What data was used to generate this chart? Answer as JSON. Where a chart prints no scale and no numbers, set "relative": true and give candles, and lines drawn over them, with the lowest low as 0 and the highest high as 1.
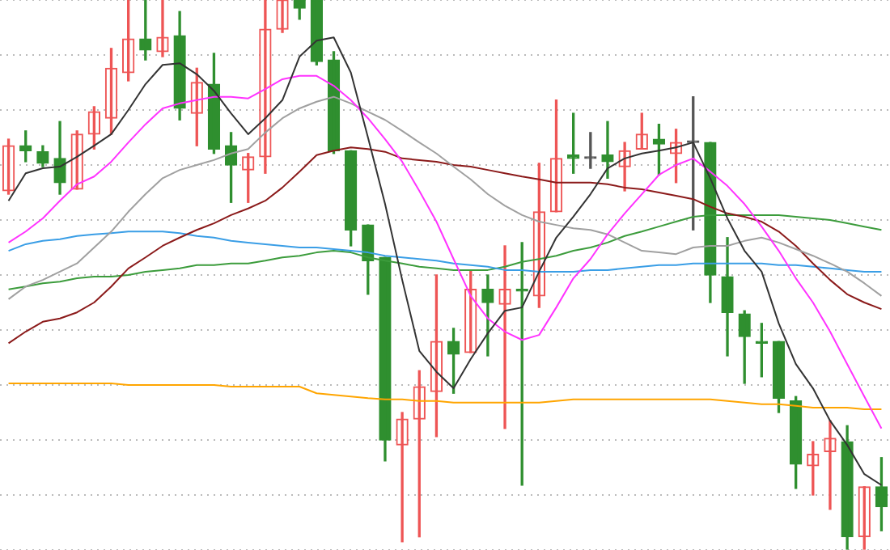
{
  "chart_data": {
    "type": "candlestick",
    "relative": true,
    "grid": "y",
    "legend": false,
    "tick_labels": false,
    "marker": "none",
    "categories": [
      null,
      null,
      null,
      null,
      null,
      null,
      null,
      null,
      null,
      null,
      null,
      null,
      null,
      null,
      null,
      null,
      null,
      null,
      null,
      null,
      null,
      null,
      null,
      null,
      null,
      null,
      null,
      null,
      null,
      null,
      null,
      null,
      null,
      null,
      null,
      null,
      null,
      null,
      null,
      null,
      null,
      null,
      null,
      null,
      null,
      null,
      null,
      null,
      null,
      null,
      null,
      null
    ],
    "ohlc": [
      [
        0.653,
        0.747,
        0.647,
        0.735
      ],
      [
        0.735,
        0.762,
        0.706,
        0.726
      ],
      [
        0.724,
        0.735,
        0.697,
        0.703
      ],
      [
        0.712,
        0.779,
        0.647,
        0.668
      ],
      [
        0.656,
        0.762,
        0.656,
        0.756
      ],
      [
        0.756,
        0.806,
        0.729,
        0.797
      ],
      [
        0.785,
        0.912,
        0.756,
        0.876
      ],
      [
        0.868,
        1,
        0.853,
        0.929
      ],
      [
        0.929,
        1,
        0.891,
        0.909
      ],
      [
        0.906,
        1,
        0.897,
        0.932
      ],
      [
        0.935,
        0.979,
        0.782,
        0.803
      ],
      [
        0.794,
        0.876,
        0.735,
        0.85
      ],
      [
        0.847,
        0.903,
        0.721,
        0.729
      ],
      [
        0.735,
        0.759,
        0.632,
        0.7
      ],
      [
        0.691,
        0.721,
        0.632,
        0.715
      ],
      [
        0.715,
        1,
        0.685,
        0.947
      ],
      [
        0.947,
        1,
        0.941,
        1
      ],
      [
        1,
        1,
        0.965,
        0.985
      ],
      [
        1,
        1,
        0.882,
        0.888
      ],
      [
        0.891,
        0.906,
        0.721,
        0.726
      ],
      [
        0.726,
        0.726,
        0.553,
        0.582
      ],
      [
        0.591,
        0.591,
        0.465,
        0.526
      ],
      [
        0.532,
        0.532,
        0.162,
        0.2
      ],
      [
        0.191,
        0.25,
        0.015,
        0.238
      ],
      [
        0.238,
        0.326,
        0.024,
        0.297
      ],
      [
        0.288,
        0.5,
        0.206,
        0.379
      ],
      [
        0.379,
        0.403,
        0.285,
        0.356
      ],
      [
        0.359,
        0.509,
        0.359,
        0.474
      ],
      [
        0.474,
        0.5,
        0.353,
        0.45
      ],
      [
        0.447,
        0.553,
        0.221,
        0.474
      ],
      [
        0.474,
        0.559,
        0.118,
        0.471
      ],
      [
        0.462,
        0.703,
        0.441,
        0.615
      ],
      [
        0.615,
        0.818,
        0.615,
        0.712
      ],
      [
        0.718,
        0.794,
        0.685,
        0.712
      ],
      [
        0.712,
        0.759,
        0.694,
        0.712
      ],
      [
        0.718,
        0.779,
        0.676,
        0.706
      ],
      [
        0.697,
        0.741,
        0.653,
        0.726
      ],
      [
        0.729,
        0.794,
        0.729,
        0.756
      ],
      [
        0.747,
        0.774,
        0.682,
        0.738
      ],
      [
        0.721,
        0.765,
        0.668,
        0.741
      ],
      [
        0.741,
        0.824,
        0.582,
        0.741
      ],
      [
        0.741,
        0.741,
        0.45,
        0.5
      ],
      [
        0.497,
        0.568,
        0.353,
        0.432
      ],
      [
        0.429,
        0.435,
        0.303,
        0.388
      ],
      [
        0.379,
        0.412,
        0.315,
        0.376
      ],
      [
        0.379,
        0.379,
        0.25,
        0.276
      ],
      [
        0.271,
        0.279,
        0.112,
        0.156
      ],
      [
        0.153,
        0.197,
        0.1,
        0.174
      ],
      [
        0.179,
        0.235,
        0.074,
        0.203
      ],
      [
        0.197,
        0.226,
        0,
        0.024
      ],
      [
        0.024,
        0.115,
        0,
        0.115
      ],
      [
        0.115,
        0.168,
        0.035,
        0.079
      ]
    ],
    "colors": [
      "#ee5555",
      "#2f8f2f",
      "#2f8f2f",
      "#2f8f2f",
      "#ee5555",
      "#ee5555",
      "#ee5555",
      "#ee5555",
      "#2f8f2f",
      "#ee5555",
      "#2f8f2f",
      "#ee5555",
      "#2f8f2f",
      "#2f8f2f",
      "#ee5555",
      "#ee5555",
      "#ee5555",
      "#2f8f2f",
      "#2f8f2f",
      "#2f8f2f",
      "#2f8f2f",
      "#2f8f2f",
      "#2f8f2f",
      "#ee5555",
      "#ee5555",
      "#ee5555",
      "#2f8f2f",
      "#ee5555",
      "#2f8f2f",
      "#ee5555",
      "#2f8f2f",
      "#ee5555",
      "#ee5555",
      "#2f8f2f",
      "#555555",
      "#2f8f2f",
      "#ee5555",
      "#ee5555",
      "#2f8f2f",
      "#ee5555",
      "#555555",
      "#2f8f2f",
      "#2f8f2f",
      "#2f8f2f",
      "#2f8f2f",
      "#2f8f2f",
      "#2f8f2f",
      "#ee5555",
      "#ee5555",
      "#2f8f2f",
      "#ee5555",
      "#2f8f2f"
    ],
    "series": [
      {
        "type": "line",
        "color": "#333333",
        "values": [
          0.635,
          0.685,
          0.694,
          0.697,
          0.715,
          0.735,
          0.756,
          0.8,
          0.847,
          0.882,
          0.885,
          0.865,
          0.835,
          0.794,
          0.756,
          0.785,
          0.818,
          0.897,
          0.926,
          0.932,
          0.868,
          0.75,
          0.629,
          0.491,
          0.362,
          0.324,
          0.294,
          0.347,
          0.394,
          0.435,
          0.441,
          0.506,
          0.568,
          0.606,
          0.647,
          0.694,
          0.712,
          0.721,
          0.726,
          0.732,
          0.741,
          0.676,
          0.603,
          0.544,
          0.506,
          0.412,
          0.338,
          0.294,
          0.235,
          0.191,
          0.138,
          0.118
        ]
      },
      {
        "type": "line",
        "color": "#ff33ff",
        "values": [
          0.559,
          0.579,
          0.603,
          0.635,
          0.665,
          0.679,
          0.706,
          0.741,
          0.774,
          0.803,
          0.812,
          0.818,
          0.824,
          0.824,
          0.821,
          0.838,
          0.856,
          0.862,
          0.862,
          0.844,
          0.818,
          0.785,
          0.747,
          0.706,
          0.653,
          0.597,
          0.529,
          0.462,
          0.421,
          0.397,
          0.382,
          0.391,
          0.441,
          0.494,
          0.529,
          0.574,
          0.612,
          0.647,
          0.682,
          0.7,
          0.712,
          0.688,
          0.662,
          0.629,
          0.588,
          0.544,
          0.494,
          0.45,
          0.397,
          0.338,
          0.279,
          0.221
        ]
      },
      {
        "type": "line",
        "color": "#a0a0a0",
        "values": [
          0.456,
          0.479,
          0.491,
          0.506,
          0.521,
          0.55,
          0.579,
          0.615,
          0.647,
          0.676,
          0.691,
          0.7,
          0.709,
          0.721,
          0.729,
          0.759,
          0.785,
          0.803,
          0.815,
          0.824,
          0.812,
          0.797,
          0.782,
          0.762,
          0.741,
          0.721,
          0.697,
          0.674,
          0.647,
          0.626,
          0.609,
          0.597,
          0.591,
          0.585,
          0.582,
          0.574,
          0.559,
          0.544,
          0.541,
          0.538,
          0.55,
          0.553,
          0.553,
          0.562,
          0.568,
          0.559,
          0.547,
          0.535,
          0.521,
          0.506,
          0.485,
          0.462
        ]
      },
      {
        "type": "line",
        "color": "#8b1a1a",
        "values": [
          0.376,
          0.397,
          0.415,
          0.421,
          0.432,
          0.45,
          0.479,
          0.512,
          0.532,
          0.553,
          0.568,
          0.582,
          0.594,
          0.609,
          0.621,
          0.635,
          0.659,
          0.688,
          0.718,
          0.726,
          0.732,
          0.729,
          0.724,
          0.712,
          0.709,
          0.706,
          0.7,
          0.697,
          0.691,
          0.685,
          0.679,
          0.674,
          0.668,
          0.668,
          0.668,
          0.665,
          0.659,
          0.656,
          0.65,
          0.644,
          0.638,
          0.624,
          0.612,
          0.606,
          0.597,
          0.579,
          0.553,
          0.521,
          0.491,
          0.465,
          0.45,
          0.438
        ]
      },
      {
        "type": "line",
        "color": "#3a9ee6",
        "values": [
          0.544,
          0.556,
          0.562,
          0.565,
          0.571,
          0.574,
          0.576,
          0.579,
          0.579,
          0.579,
          0.576,
          0.571,
          0.568,
          0.562,
          0.559,
          0.556,
          0.553,
          0.55,
          0.55,
          0.547,
          0.544,
          0.541,
          0.535,
          0.532,
          0.529,
          0.526,
          0.521,
          0.518,
          0.515,
          0.509,
          0.509,
          0.506,
          0.506,
          0.506,
          0.509,
          0.509,
          0.512,
          0.515,
          0.518,
          0.518,
          0.521,
          0.521,
          0.521,
          0.521,
          0.521,
          0.518,
          0.518,
          0.515,
          0.512,
          0.509,
          0.506,
          0.506
        ]
      },
      {
        "type": "line",
        "color": "#3c9c3c",
        "values": [
          0.474,
          0.479,
          0.485,
          0.488,
          0.494,
          0.497,
          0.497,
          0.5,
          0.506,
          0.509,
          0.512,
          0.518,
          0.518,
          0.521,
          0.521,
          0.526,
          0.532,
          0.535,
          0.541,
          0.544,
          0.541,
          0.532,
          0.526,
          0.521,
          0.515,
          0.512,
          0.509,
          0.509,
          0.509,
          0.515,
          0.524,
          0.529,
          0.535,
          0.544,
          0.55,
          0.559,
          0.571,
          0.579,
          0.588,
          0.597,
          0.606,
          0.609,
          0.609,
          0.609,
          0.609,
          0.609,
          0.606,
          0.603,
          0.6,
          0.594,
          0.588,
          0.582
        ]
      },
      {
        "type": "line",
        "color": "#ffa500",
        "values": [
          0.303,
          0.303,
          0.303,
          0.303,
          0.303,
          0.303,
          0.303,
          0.3,
          0.3,
          0.3,
          0.3,
          0.3,
          0.3,
          0.297,
          0.297,
          0.297,
          0.297,
          0.297,
          0.285,
          0.282,
          0.279,
          0.276,
          0.274,
          0.274,
          0.271,
          0.271,
          0.268,
          0.268,
          0.268,
          0.268,
          0.268,
          0.268,
          0.271,
          0.274,
          0.274,
          0.274,
          0.274,
          0.274,
          0.274,
          0.274,
          0.274,
          0.274,
          0.271,
          0.268,
          0.265,
          0.265,
          0.262,
          0.259,
          0.259,
          0.259,
          0.256,
          0.256
        ]
      }
    ]
  }
}
